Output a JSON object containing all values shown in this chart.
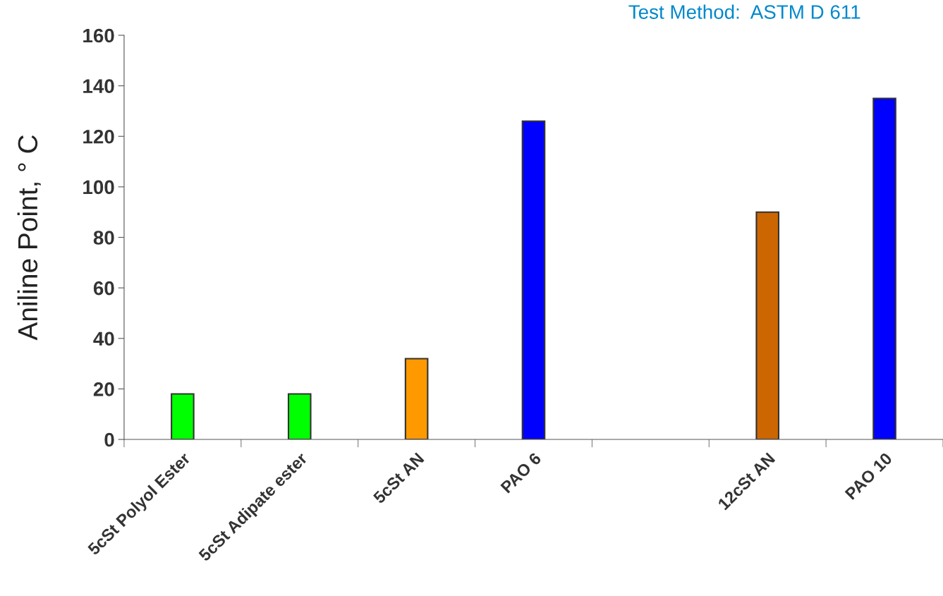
{
  "chart_data": {
    "type": "bar",
    "ylabel": "Aniline Point, ° C",
    "annotations": [
      "Test Method:  ASTM D 611"
    ],
    "categories": [
      "5cSt Polyol Ester",
      "5cSt Adipate ester",
      "5cSt AN",
      "PAO 6",
      null,
      "12cSt AN",
      "PAO 10"
    ],
    "values": [
      18,
      18,
      32,
      126,
      null,
      90,
      135
    ],
    "colors": [
      "#00ff00",
      "#00ff00",
      "#ff9900",
      "#0000ff",
      "#ffffff",
      "#cc6600",
      "#0000ff"
    ],
    "ylim": [
      0,
      160
    ],
    "yticks": [
      0,
      20,
      40,
      60,
      80,
      100,
      120,
      140,
      160
    ],
    "grid": false
  }
}
